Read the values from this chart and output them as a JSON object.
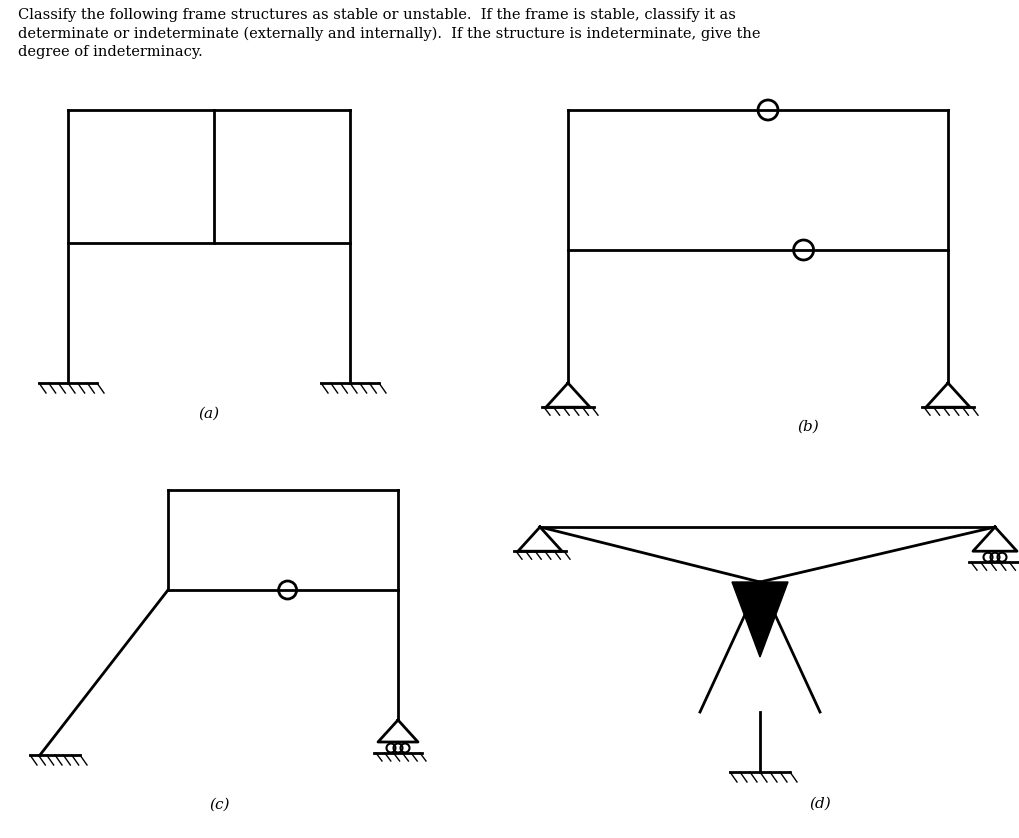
{
  "title_text": "Classify the following frame structures as stable or unstable.  If the frame is stable, classify it as\ndeterminate or indeterminate (externally and internally).  If the structure is indeterminate, give the\ndegree of indeterminacy.",
  "bg_color": "#ffffff",
  "line_color": "#000000",
  "line_width": 2.0,
  "labels": [
    "(a)",
    "(b)",
    "(c)",
    "(d)"
  ],
  "title_fontsize": 10.5,
  "label_fontsize": 11
}
